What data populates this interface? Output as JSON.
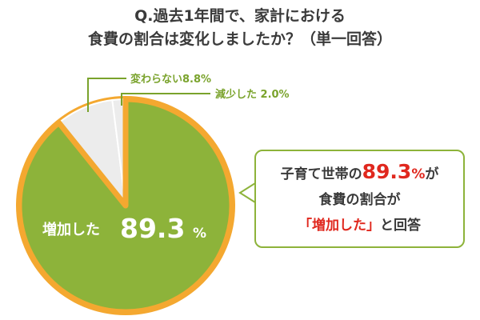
{
  "title": {
    "line1": "Q.過去1年間で、家計における",
    "line2": "食費の割合は変化しましたか？（単一回答）"
  },
  "chart_data": {
    "type": "pie",
    "categories": [
      "増加した",
      "変わらない",
      "減少した"
    ],
    "values": [
      89.3,
      8.8,
      2.0
    ],
    "labels": {
      "unchanged": "変わらない8.8%",
      "decreased": "減少した 2.0%",
      "increased_text": "増加した",
      "increased_value": "89.3",
      "increased_unit": "%"
    }
  },
  "colors": {
    "increased": "#8db33a",
    "unchanged": "#ececec",
    "decreased": "#ececec",
    "outline": "#f4a830",
    "slice_border": "#ffffff",
    "label_green": "#7aa32c",
    "accent_red": "#e0281e"
  },
  "callout": {
    "prefix": "子育て世帯の",
    "value": "89.3",
    "unit": "%",
    "suffix": "が",
    "line2": "食費の割合が",
    "quote": "「増加した」",
    "line3_tail": "と回答"
  }
}
